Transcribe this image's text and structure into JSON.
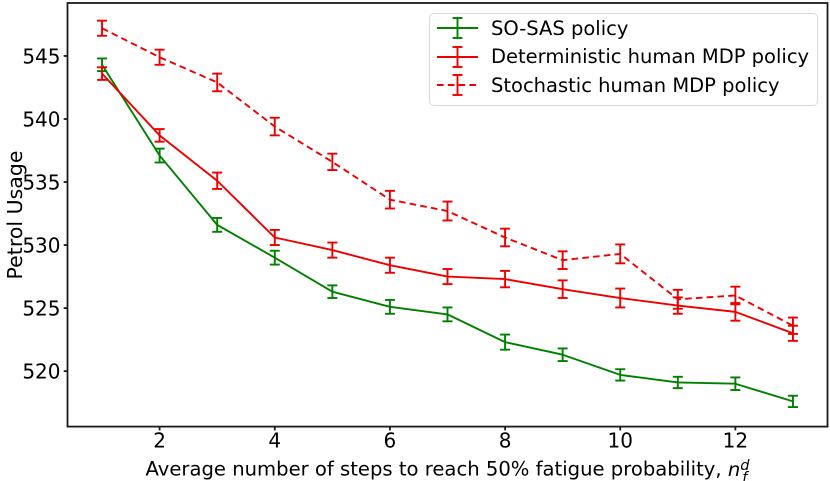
{
  "figure": {
    "background": "#ffffff"
  },
  "chart_data": {
    "type": "line",
    "title": "",
    "xlabel_prefix": "Average number of steps to reach 50% fatigue probability, ",
    "xlabel_math": {
      "var": "n",
      "sub": "f",
      "sup": "d"
    },
    "ylabel": "Petrol Usage",
    "x": [
      1,
      2,
      3,
      4,
      5,
      6,
      7,
      8,
      9,
      10,
      11,
      12,
      13
    ],
    "xlim": [
      0.4,
      13.6
    ],
    "ylim": [
      515.6,
      549.2
    ],
    "x_ticks": [
      2,
      4,
      6,
      8,
      10,
      12
    ],
    "y_ticks": [
      520,
      525,
      530,
      535,
      540,
      545
    ],
    "grid": false,
    "axis_color": "#1a1a1a",
    "legend": {
      "position": "upper right",
      "border_color": "#d9d9d9",
      "background": "rgba(255,255,255,0.8)"
    },
    "series": [
      {
        "name": "SO-SAS policy",
        "color": "#008000",
        "linestyle": "solid",
        "values": [
          544.3,
          537.1,
          531.6,
          529.0,
          526.3,
          525.1,
          524.5,
          522.3,
          521.3,
          519.7,
          519.1,
          519.0,
          517.6
        ],
        "yerr": [
          0.5,
          0.55,
          0.55,
          0.55,
          0.5,
          0.55,
          0.55,
          0.6,
          0.5,
          0.45,
          0.45,
          0.5,
          0.45
        ]
      },
      {
        "name": "Deterministic human MDP policy",
        "color": "#ee0000",
        "linestyle": "solid",
        "values": [
          543.6,
          538.7,
          535.1,
          530.6,
          529.6,
          528.4,
          527.5,
          527.3,
          526.5,
          525.8,
          525.2,
          524.7,
          523.0
        ],
        "yerr": [
          0.5,
          0.5,
          0.65,
          0.6,
          0.6,
          0.6,
          0.6,
          0.65,
          0.7,
          0.75,
          0.65,
          0.7,
          0.6
        ]
      },
      {
        "name": "Stochastic human MDP policy",
        "color": "#ee0000",
        "linestyle": "dashed",
        "values": [
          547.2,
          544.9,
          542.9,
          539.4,
          536.6,
          533.6,
          532.7,
          530.6,
          528.8,
          529.3,
          525.7,
          526.0,
          523.6
        ],
        "yerr": [
          0.6,
          0.6,
          0.7,
          0.7,
          0.65,
          0.7,
          0.75,
          0.7,
          0.7,
          0.75,
          0.75,
          0.7,
          0.65
        ]
      }
    ]
  }
}
